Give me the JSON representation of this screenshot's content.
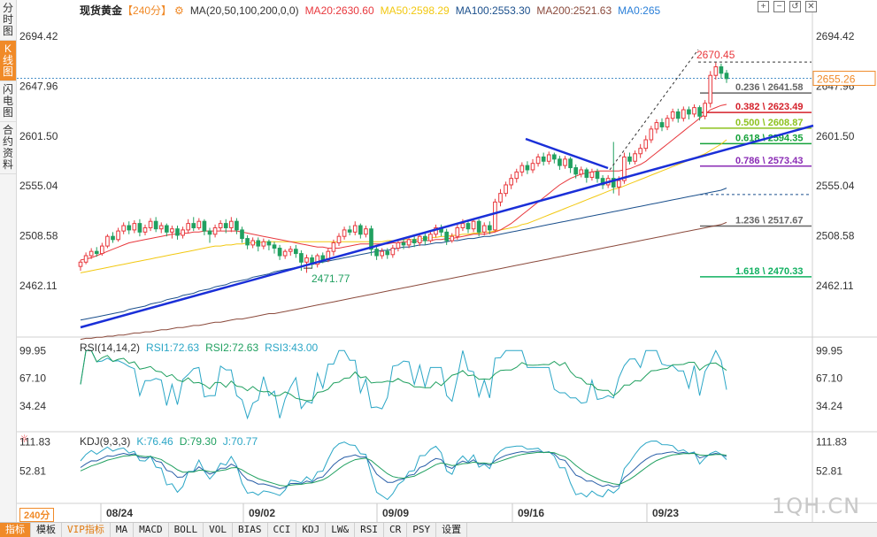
{
  "side_tabs": [
    {
      "label": "分时图",
      "active": false
    },
    {
      "label": "K线图",
      "active": true
    },
    {
      "label": "闪电图",
      "active": false
    },
    {
      "label": "合约资料",
      "active": false
    }
  ],
  "header": {
    "symbol": "现货黄金",
    "period": "【240分】",
    "ma_params": "MA(20,50,100,200,0,0)",
    "ma20": "MA20:2630.60",
    "ma50": "MA50:2598.29",
    "ma100": "MA100:2553.30",
    "ma200": "MA200:2521.63",
    "ma0": "MA0:265"
  },
  "top_icons": [
    "+",
    "−",
    "↺",
    "✕"
  ],
  "rsi_info": {
    "name": "RSI(14,14,2)",
    "rsi1": "RSI1:72.63",
    "rsi2": "RSI2:72.63",
    "rsi3": "RSI3:43.00"
  },
  "kdj_info": {
    "name": "KDJ(9,3,3)",
    "k": "K:76.46",
    "d": "D:79.30",
    "j": "J:70.77"
  },
  "period_badge": "240分",
  "bottom_bar": [
    "指标",
    "模板",
    "VIP指标",
    "MA",
    "MACD",
    "BOLL",
    "VOL",
    "BIAS",
    "CCI",
    "KDJ",
    "LW&",
    "RSI",
    "CR",
    "PSY",
    "设置"
  ],
  "watermark": "1QH.CN",
  "colors": {
    "up": "#e8383d",
    "down": "#21a060",
    "ma20": "#e8383d",
    "ma50": "#f2c811",
    "ma100": "#1a4f8c",
    "ma200": "#8b4a3c",
    "trend": "#1a2fd8",
    "rsi1": "#2aa6c6",
    "rsi2": "#20a060",
    "rsi3": "#2aa6c6"
  },
  "chart_data": {
    "type": "candlestick",
    "price_axis": {
      "ticks": [
        2694.42,
        2647.96,
        2601.5,
        2555.04,
        2508.58,
        2462.11
      ],
      "range": [
        2415,
        2720
      ]
    },
    "x_labels": [
      "08/24",
      "09/02",
      "09/09",
      "09/16",
      "09/23"
    ],
    "current_price": "2655.26",
    "high_label": "2670.45",
    "low_label": "2471.77",
    "fibonacci": [
      {
        "ratio": "0.236",
        "price": 2641.58,
        "label": "0.236 \\ 2641.58",
        "color": "#666666"
      },
      {
        "ratio": "0.382",
        "price": 2623.49,
        "label": "0.382 \\ 2623.49",
        "color": "#d4202a"
      },
      {
        "ratio": "0.500",
        "price": 2608.87,
        "label": "0.500 \\ 2608.87",
        "color": "#8dc21f"
      },
      {
        "ratio": "0.618",
        "price": 2594.35,
        "label": "0.618 \\ 2594.35",
        "color": "#15a23a"
      },
      {
        "ratio": "0.786",
        "price": 2573.43,
        "label": "0.786 \\ 2573.43",
        "color": "#8a2bb5"
      },
      {
        "ratio": "1.000",
        "price": 2547.0,
        "label": "",
        "color": "#1a4f8c"
      },
      {
        "ratio": "1.236",
        "price": 2517.67,
        "label": "1.236 \\ 2517.67",
        "color": "#666666"
      },
      {
        "ratio": "1.618",
        "price": 2470.33,
        "label": "1.618 \\ 2470.33",
        "color": "#10b060"
      }
    ],
    "candles": [
      [
        2480,
        2484,
        2476,
        2486
      ],
      [
        2484,
        2490,
        2482,
        2493
      ],
      [
        2490,
        2494,
        2487,
        2497
      ],
      [
        2494,
        2492,
        2489,
        2498
      ],
      [
        2492,
        2499,
        2490,
        2502
      ],
      [
        2499,
        2508,
        2497,
        2510
      ],
      [
        2508,
        2505,
        2502,
        2512
      ],
      [
        2505,
        2513,
        2503,
        2516
      ],
      [
        2513,
        2518,
        2510,
        2521
      ],
      [
        2518,
        2514,
        2510,
        2522
      ],
      [
        2514,
        2520,
        2511,
        2523
      ],
      [
        2520,
        2512,
        2508,
        2524
      ],
      [
        2512,
        2516,
        2509,
        2519
      ],
      [
        2516,
        2522,
        2513,
        2525
      ],
      [
        2522,
        2515,
        2512,
        2526
      ],
      [
        2515,
        2518,
        2511,
        2521
      ],
      [
        2518,
        2512,
        2508,
        2520
      ],
      [
        2512,
        2515,
        2506,
        2518
      ],
      [
        2515,
        2509,
        2505,
        2518
      ],
      [
        2509,
        2514,
        2506,
        2517
      ],
      [
        2514,
        2520,
        2511,
        2524
      ],
      [
        2520,
        2516,
        2513,
        2526
      ],
      [
        2516,
        2522,
        2514,
        2525
      ],
      [
        2522,
        2513,
        2509,
        2524
      ],
      [
        2513,
        2510,
        2502,
        2516
      ],
      [
        2510,
        2516,
        2507,
        2519
      ],
      [
        2516,
        2520,
        2513,
        2523
      ],
      [
        2520,
        2516,
        2511,
        2524
      ],
      [
        2516,
        2522,
        2512,
        2526
      ],
      [
        2522,
        2514,
        2510,
        2525
      ],
      [
        2514,
        2506,
        2502,
        2517
      ],
      [
        2506,
        2500,
        2496,
        2509
      ],
      [
        2500,
        2504,
        2497,
        2507
      ],
      [
        2504,
        2499,
        2494,
        2507
      ],
      [
        2499,
        2503,
        2496,
        2506
      ],
      [
        2503,
        2500,
        2495,
        2505
      ],
      [
        2500,
        2497,
        2492,
        2503
      ],
      [
        2497,
        2490,
        2486,
        2500
      ],
      [
        2490,
        2494,
        2487,
        2496
      ],
      [
        2494,
        2496,
        2490,
        2499
      ],
      [
        2496,
        2492,
        2488,
        2500
      ],
      [
        2492,
        2484,
        2476,
        2495
      ],
      [
        2484,
        2488,
        2474,
        2491
      ],
      [
        2488,
        2482,
        2478,
        2491
      ],
      [
        2482,
        2490,
        2479,
        2492
      ],
      [
        2490,
        2486,
        2483,
        2493
      ],
      [
        2486,
        2494,
        2484,
        2497
      ],
      [
        2494,
        2502,
        2490,
        2505
      ],
      [
        2502,
        2508,
        2499,
        2511
      ],
      [
        2508,
        2514,
        2505,
        2517
      ],
      [
        2514,
        2512,
        2509,
        2518
      ],
      [
        2512,
        2518,
        2509,
        2522
      ],
      [
        2518,
        2510,
        2506,
        2520
      ],
      [
        2510,
        2515,
        2507,
        2518
      ],
      [
        2515,
        2496,
        2490,
        2518
      ],
      [
        2496,
        2490,
        2486,
        2499
      ],
      [
        2490,
        2494,
        2487,
        2497
      ],
      [
        2494,
        2491,
        2487,
        2497
      ],
      [
        2491,
        2497,
        2488,
        2500
      ],
      [
        2497,
        2502,
        2494,
        2505
      ],
      [
        2502,
        2500,
        2496,
        2506
      ],
      [
        2500,
        2505,
        2497,
        2508
      ],
      [
        2505,
        2502,
        2498,
        2508
      ],
      [
        2502,
        2508,
        2499,
        2511
      ],
      [
        2508,
        2504,
        2500,
        2511
      ],
      [
        2504,
        2510,
        2502,
        2513
      ],
      [
        2510,
        2516,
        2507,
        2519
      ],
      [
        2516,
        2512,
        2508,
        2519
      ],
      [
        2512,
        2504,
        2500,
        2515
      ],
      [
        2504,
        2508,
        2502,
        2511
      ],
      [
        2508,
        2516,
        2505,
        2519
      ],
      [
        2516,
        2520,
        2513,
        2524
      ],
      [
        2520,
        2515,
        2511,
        2523
      ],
      [
        2515,
        2522,
        2512,
        2525
      ],
      [
        2522,
        2512,
        2508,
        2524
      ],
      [
        2512,
        2518,
        2509,
        2521
      ],
      [
        2518,
        2514,
        2510,
        2522
      ],
      [
        2514,
        2540,
        2512,
        2543
      ],
      [
        2540,
        2548,
        2536,
        2552
      ],
      [
        2548,
        2556,
        2545,
        2559
      ],
      [
        2556,
        2562,
        2552,
        2566
      ],
      [
        2562,
        2568,
        2558,
        2571
      ],
      [
        2568,
        2574,
        2564,
        2577
      ],
      [
        2574,
        2570,
        2566,
        2578
      ],
      [
        2570,
        2576,
        2567,
        2580
      ],
      [
        2576,
        2582,
        2573,
        2585
      ],
      [
        2582,
        2578,
        2574,
        2586
      ],
      [
        2578,
        2584,
        2575,
        2587
      ],
      [
        2584,
        2580,
        2576,
        2586
      ],
      [
        2580,
        2574,
        2570,
        2583
      ],
      [
        2574,
        2580,
        2571,
        2583
      ],
      [
        2580,
        2572,
        2567,
        2582
      ],
      [
        2572,
        2566,
        2562,
        2575
      ],
      [
        2566,
        2570,
        2563,
        2573
      ],
      [
        2570,
        2563,
        2558,
        2572
      ],
      [
        2563,
        2568,
        2560,
        2571
      ],
      [
        2568,
        2562,
        2558,
        2571
      ],
      [
        2562,
        2556,
        2552,
        2565
      ],
      [
        2556,
        2562,
        2553,
        2565
      ],
      [
        2562,
        2554,
        2548,
        2596
      ],
      [
        2554,
        2560,
        2546,
        2564
      ],
      [
        2560,
        2582,
        2557,
        2586
      ],
      [
        2582,
        2578,
        2575,
        2586
      ],
      [
        2578,
        2585,
        2575,
        2588
      ],
      [
        2585,
        2590,
        2581,
        2594
      ],
      [
        2590,
        2598,
        2587,
        2602
      ],
      [
        2598,
        2608,
        2595,
        2611
      ],
      [
        2608,
        2614,
        2604,
        2617
      ],
      [
        2614,
        2610,
        2606,
        2618
      ],
      [
        2610,
        2618,
        2607,
        2621
      ],
      [
        2618,
        2624,
        2615,
        2627
      ],
      [
        2624,
        2618,
        2614,
        2627
      ],
      [
        2618,
        2626,
        2615,
        2629
      ],
      [
        2626,
        2622,
        2617,
        2629
      ],
      [
        2622,
        2628,
        2619,
        2631
      ],
      [
        2628,
        2620,
        2616,
        2630
      ],
      [
        2620,
        2632,
        2617,
        2635
      ],
      [
        2632,
        2658,
        2628,
        2662
      ],
      [
        2658,
        2666,
        2654,
        2670
      ],
      [
        2666,
        2660,
        2655,
        2669
      ],
      [
        2660,
        2655,
        2651,
        2663
      ]
    ],
    "ma20": [
      2486,
      2487,
      2488,
      2490,
      2492,
      2494,
      2496,
      2498,
      2500,
      2502,
      2503,
      2504,
      2505,
      2506,
      2507,
      2508,
      2509,
      2510,
      2510,
      2511,
      2511,
      2512,
      2512,
      2513,
      2513,
      2513,
      2513,
      2513,
      2513,
      2513,
      2512,
      2511,
      2510,
      2509,
      2508,
      2507,
      2506,
      2505,
      2504,
      2503,
      2502,
      2501,
      2500,
      2499,
      2498,
      2498,
      2497,
      2497,
      2497,
      2498,
      2499,
      2500,
      2501,
      2501,
      2501,
      2501,
      2501,
      2501,
      2502,
      2502,
      2503,
      2503,
      2503,
      2504,
      2504,
      2504,
      2505,
      2505,
      2506,
      2506,
      2507,
      2508,
      2509,
      2510,
      2510,
      2510,
      2511,
      2512,
      2514,
      2517,
      2520,
      2524,
      2528,
      2532,
      2536,
      2540,
      2544,
      2548,
      2552,
      2556,
      2559,
      2562,
      2564,
      2566,
      2567,
      2568,
      2569,
      2569,
      2569,
      2569,
      2569,
      2570,
      2571,
      2573,
      2575,
      2578,
      2582,
      2586,
      2590,
      2594,
      2598,
      2602,
      2606,
      2610,
      2614,
      2618,
      2622,
      2626,
      2628,
      2630,
      2631
    ],
    "ma50": [
      2474,
      2475,
      2476,
      2477,
      2478,
      2479,
      2480,
      2481,
      2482,
      2483,
      2484,
      2485,
      2486,
      2487,
      2488,
      2489,
      2490,
      2491,
      2492,
      2493,
      2494,
      2495,
      2496,
      2497,
      2498,
      2499,
      2499,
      2500,
      2500,
      2501,
      2501,
      2502,
      2502,
      2502,
      2503,
      2503,
      2503,
      2503,
      2503,
      2503,
      2503,
      2503,
      2503,
      2503,
      2503,
      2503,
      2503,
      2503,
      2503,
      2503,
      2503,
      2503,
      2503,
      2503,
      2503,
      2503,
      2503,
      2504,
      2504,
      2504,
      2505,
      2505,
      2505,
      2506,
      2506,
      2507,
      2507,
      2508,
      2508,
      2509,
      2509,
      2510,
      2510,
      2511,
      2511,
      2512,
      2512,
      2513,
      2514,
      2515,
      2516,
      2517,
      2519,
      2520,
      2522,
      2524,
      2526,
      2528,
      2530,
      2532,
      2534,
      2536,
      2538,
      2540,
      2542,
      2544,
      2546,
      2548,
      2550,
      2552,
      2553,
      2555,
      2557,
      2559,
      2561,
      2563,
      2565,
      2567,
      2569,
      2571,
      2573,
      2575,
      2577,
      2579,
      2581,
      2583,
      2585,
      2588,
      2591,
      2594,
      2598
    ],
    "ma100": [
      2430,
      2431,
      2432,
      2433,
      2434,
      2435,
      2436,
      2437,
      2438,
      2440,
      2441,
      2442,
      2443,
      2445,
      2446,
      2447,
      2449,
      2450,
      2451,
      2453,
      2454,
      2455,
      2457,
      2458,
      2459,
      2461,
      2462,
      2463,
      2465,
      2466,
      2467,
      2468,
      2470,
      2471,
      2472,
      2473,
      2475,
      2476,
      2477,
      2478,
      2479,
      2480,
      2481,
      2482,
      2483,
      2484,
      2485,
      2486,
      2487,
      2488,
      2489,
      2490,
      2491,
      2492,
      2493,
      2494,
      2495,
      2495,
      2496,
      2497,
      2498,
      2498,
      2499,
      2500,
      2500,
      2501,
      2502,
      2502,
      2503,
      2504,
      2504,
      2505,
      2506,
      2506,
      2507,
      2508,
      2508,
      2509,
      2510,
      2511,
      2512,
      2513,
      2514,
      2515,
      2516,
      2517,
      2518,
      2519,
      2520,
      2521,
      2522,
      2523,
      2524,
      2525,
      2526,
      2527,
      2528,
      2529,
      2530,
      2531,
      2532,
      2533,
      2534,
      2535,
      2536,
      2537,
      2538,
      2539,
      2540,
      2541,
      2542,
      2543,
      2544,
      2545,
      2546,
      2547,
      2548,
      2549,
      2550,
      2551,
      2553
    ],
    "ma200": [
      2412,
      2413,
      2413,
      2414,
      2414,
      2415,
      2415,
      2416,
      2416,
      2417,
      2418,
      2418,
      2419,
      2419,
      2420,
      2421,
      2421,
      2422,
      2423,
      2423,
      2424,
      2425,
      2425,
      2426,
      2427,
      2428,
      2428,
      2429,
      2430,
      2431,
      2431,
      2432,
      2433,
      2434,
      2435,
      2436,
      2436,
      2437,
      2438,
      2439,
      2440,
      2441,
      2442,
      2443,
      2444,
      2445,
      2446,
      2447,
      2448,
      2449,
      2450,
      2451,
      2452,
      2453,
      2454,
      2455,
      2456,
      2457,
      2458,
      2459,
      2460,
      2461,
      2462,
      2463,
      2464,
      2465,
      2466,
      2467,
      2468,
      2469,
      2470,
      2471,
      2472,
      2473,
      2474,
      2475,
      2476,
      2477,
      2478,
      2479,
      2480,
      2481,
      2482,
      2483,
      2484,
      2485,
      2486,
      2487,
      2488,
      2489,
      2490,
      2491,
      2492,
      2493,
      2494,
      2495,
      2496,
      2497,
      2498,
      2499,
      2500,
      2501,
      2502,
      2503,
      2504,
      2505,
      2506,
      2507,
      2508,
      2509,
      2510,
      2511,
      2512,
      2513,
      2514,
      2515,
      2516,
      2517,
      2518,
      2519,
      2521
    ],
    "rsi_axis": {
      "ticks": [
        99.95,
        67.1,
        34.24
      ],
      "range": [
        5,
        115
      ]
    },
    "kdj_axis": {
      "ticks": [
        111.83,
        52.81
      ],
      "range": [
        -10,
        130
      ]
    }
  }
}
